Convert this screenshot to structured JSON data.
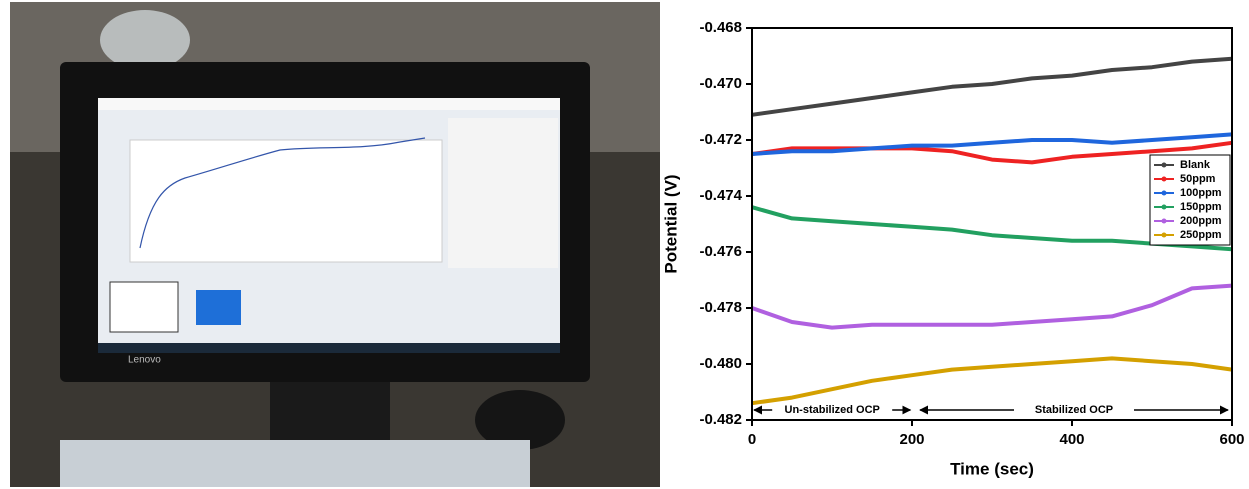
{
  "photo": {
    "brand": "Lenovo"
  },
  "chart_data": {
    "type": "line",
    "x_label": "Time (sec)",
    "y_label": "Potential (V)",
    "x": [
      0,
      50,
      100,
      150,
      200,
      250,
      300,
      350,
      400,
      450,
      500,
      550,
      600
    ],
    "series": [
      {
        "name": "Blank",
        "color": "#444444",
        "values": [
          -0.4711,
          -0.4709,
          -0.4707,
          -0.4705,
          -0.4703,
          -0.4701,
          -0.47,
          -0.4698,
          -0.4697,
          -0.4695,
          -0.4694,
          -0.4692,
          -0.4691
        ]
      },
      {
        "name": "50ppm",
        "color": "#ee2222",
        "values": [
          -0.4725,
          -0.4723,
          -0.4723,
          -0.4723,
          -0.4723,
          -0.4724,
          -0.4727,
          -0.4728,
          -0.4726,
          -0.4725,
          -0.4724,
          -0.4723,
          -0.4721
        ]
      },
      {
        "name": "100ppm",
        "color": "#1f66dd",
        "values": [
          -0.4725,
          -0.4724,
          -0.4724,
          -0.4723,
          -0.4722,
          -0.4722,
          -0.4721,
          -0.472,
          -0.472,
          -0.4721,
          -0.472,
          -0.4719,
          -0.4718
        ]
      },
      {
        "name": "150ppm",
        "color": "#22a060",
        "values": [
          -0.4744,
          -0.4748,
          -0.4749,
          -0.475,
          -0.4751,
          -0.4752,
          -0.4754,
          -0.4755,
          -0.4756,
          -0.4756,
          -0.4757,
          -0.4758,
          -0.4759
        ]
      },
      {
        "name": "200ppm",
        "color": "#b060e0",
        "values": [
          -0.478,
          -0.4785,
          -0.4787,
          -0.4786,
          -0.4786,
          -0.4786,
          -0.4786,
          -0.4785,
          -0.4784,
          -0.4783,
          -0.4779,
          -0.4773,
          -0.4772
        ]
      },
      {
        "name": "250ppm",
        "color": "#d4a000",
        "values": [
          -0.4814,
          -0.4812,
          -0.4809,
          -0.4806,
          -0.4804,
          -0.4802,
          -0.4801,
          -0.48,
          -0.4799,
          -0.4798,
          -0.4799,
          -0.48,
          -0.4802
        ]
      }
    ],
    "xlim": [
      0,
      600
    ],
    "xticks": [
      0,
      200,
      400,
      600
    ],
    "ylim": [
      -0.482,
      -0.468
    ],
    "yticks": [
      -0.482,
      {
        "value": -0.48,
        "label": "-0.480"
      },
      -0.478,
      -0.476,
      -0.474,
      -0.472,
      {
        "value": -0.47,
        "label": "-0.470"
      },
      -0.468
    ],
    "legend": "right",
    "annotations": [
      "Un-stabilized OCP",
      "Stabilized OCP"
    ]
  }
}
